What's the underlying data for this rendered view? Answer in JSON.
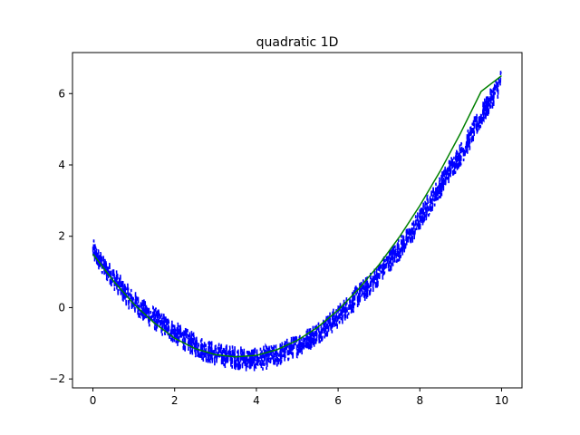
{
  "chart_data": {
    "type": "line",
    "title": "quadratic 1D",
    "xlabel": "",
    "ylabel": "",
    "xlim": [
      -0.5,
      10.5
    ],
    "ylim": [
      -2.25,
      7.15
    ],
    "xticks": [
      0,
      2,
      4,
      6,
      8,
      10
    ],
    "yticks": [
      -2,
      0,
      2,
      4,
      6
    ],
    "grid": false,
    "legend": "none",
    "colors": {
      "noisy": "#0000ff",
      "fit": "#008000",
      "axes": "#000000",
      "background": "#ffffff"
    },
    "series": [
      {
        "style": "dashed",
        "x": [
          0.0,
          0.25,
          0.5,
          0.75,
          1.0,
          1.25,
          1.5,
          1.75,
          2.0,
          2.25,
          2.5,
          2.75,
          3.0,
          3.25,
          3.5,
          3.75,
          4.0,
          4.25,
          4.5,
          4.75,
          5.0,
          5.25,
          5.5,
          5.75,
          6.0,
          6.25,
          6.5,
          6.75,
          7.0,
          7.25,
          7.5,
          7.75,
          8.0,
          8.25,
          8.5,
          8.75,
          9.0,
          9.25,
          9.5,
          9.75,
          10.0
        ],
        "y": [
          1.6,
          1.15,
          0.85,
          0.45,
          0.15,
          -0.1,
          -0.3,
          -0.5,
          -0.7,
          -0.9,
          -1.05,
          -1.2,
          -1.3,
          -1.35,
          -1.4,
          -1.45,
          -1.45,
          -1.4,
          -1.35,
          -1.2,
          -1.05,
          -0.9,
          -0.7,
          -0.5,
          -0.25,
          0.05,
          0.35,
          0.6,
          0.95,
          1.3,
          1.65,
          2.0,
          2.45,
          2.95,
          3.4,
          3.9,
          4.3,
          4.8,
          5.35,
          5.85,
          6.4
        ],
        "noise_amplitude": 0.35
      },
      {
        "style": "solid",
        "x": [
          0,
          0.5,
          1,
          1.5,
          2,
          2.5,
          3,
          3.5,
          4,
          4.5,
          5,
          5.5,
          6,
          6.5,
          7,
          7.5,
          8,
          8.5,
          9,
          9.5,
          10
        ],
        "y": [
          1.5,
          0.75,
          0.1,
          -0.43,
          -0.86,
          -1.15,
          -1.32,
          -1.38,
          -1.34,
          -1.18,
          -0.92,
          -0.55,
          -0.07,
          0.52,
          1.2,
          1.98,
          2.86,
          3.83,
          4.9,
          6.06,
          6.5
        ]
      }
    ]
  }
}
